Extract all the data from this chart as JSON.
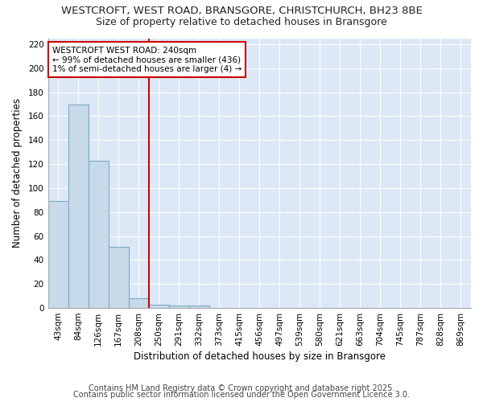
{
  "title1": "WESTCROFT, WEST ROAD, BRANSGORE, CHRISTCHURCH, BH23 8BE",
  "title2": "Size of property relative to detached houses in Bransgore",
  "xlabel": "Distribution of detached houses by size in Bransgore",
  "ylabel": "Number of detached properties",
  "categories": [
    "43sqm",
    "84sqm",
    "126sqm",
    "167sqm",
    "208sqm",
    "250sqm",
    "291sqm",
    "332sqm",
    "373sqm",
    "415sqm",
    "456sqm",
    "497sqm",
    "539sqm",
    "580sqm",
    "621sqm",
    "663sqm",
    "704sqm",
    "745sqm",
    "787sqm",
    "828sqm",
    "869sqm"
  ],
  "values": [
    89,
    170,
    123,
    51,
    8,
    3,
    2,
    2,
    0,
    0,
    0,
    0,
    0,
    0,
    0,
    0,
    0,
    0,
    0,
    0,
    0
  ],
  "bar_color": "#c8daea",
  "bar_edge_color": "#7aaac8",
  "red_line_x": 4.5,
  "red_line_color": "#cc0000",
  "annotation_text": "WESTCROFT WEST ROAD: 240sqm\n← 99% of detached houses are smaller (436)\n1% of semi-detached houses are larger (4) →",
  "annotation_box_color": "#ffffff",
  "annotation_border_color": "#cc0000",
  "ylim": [
    0,
    225
  ],
  "yticks": [
    0,
    20,
    40,
    60,
    80,
    100,
    120,
    140,
    160,
    180,
    200,
    220
  ],
  "footer1": "Contains HM Land Registry data © Crown copyright and database right 2025.",
  "footer2": "Contains public sector information licensed under the Open Government Licence 3.0.",
  "bg_color": "#ffffff",
  "plot_bg_color": "#dce8f5",
  "grid_color": "#ffffff",
  "title_fontsize": 9.5,
  "subtitle_fontsize": 9,
  "axis_label_fontsize": 8.5,
  "tick_fontsize": 7.5,
  "footer_fontsize": 7,
  "annot_fontsize": 7.5
}
